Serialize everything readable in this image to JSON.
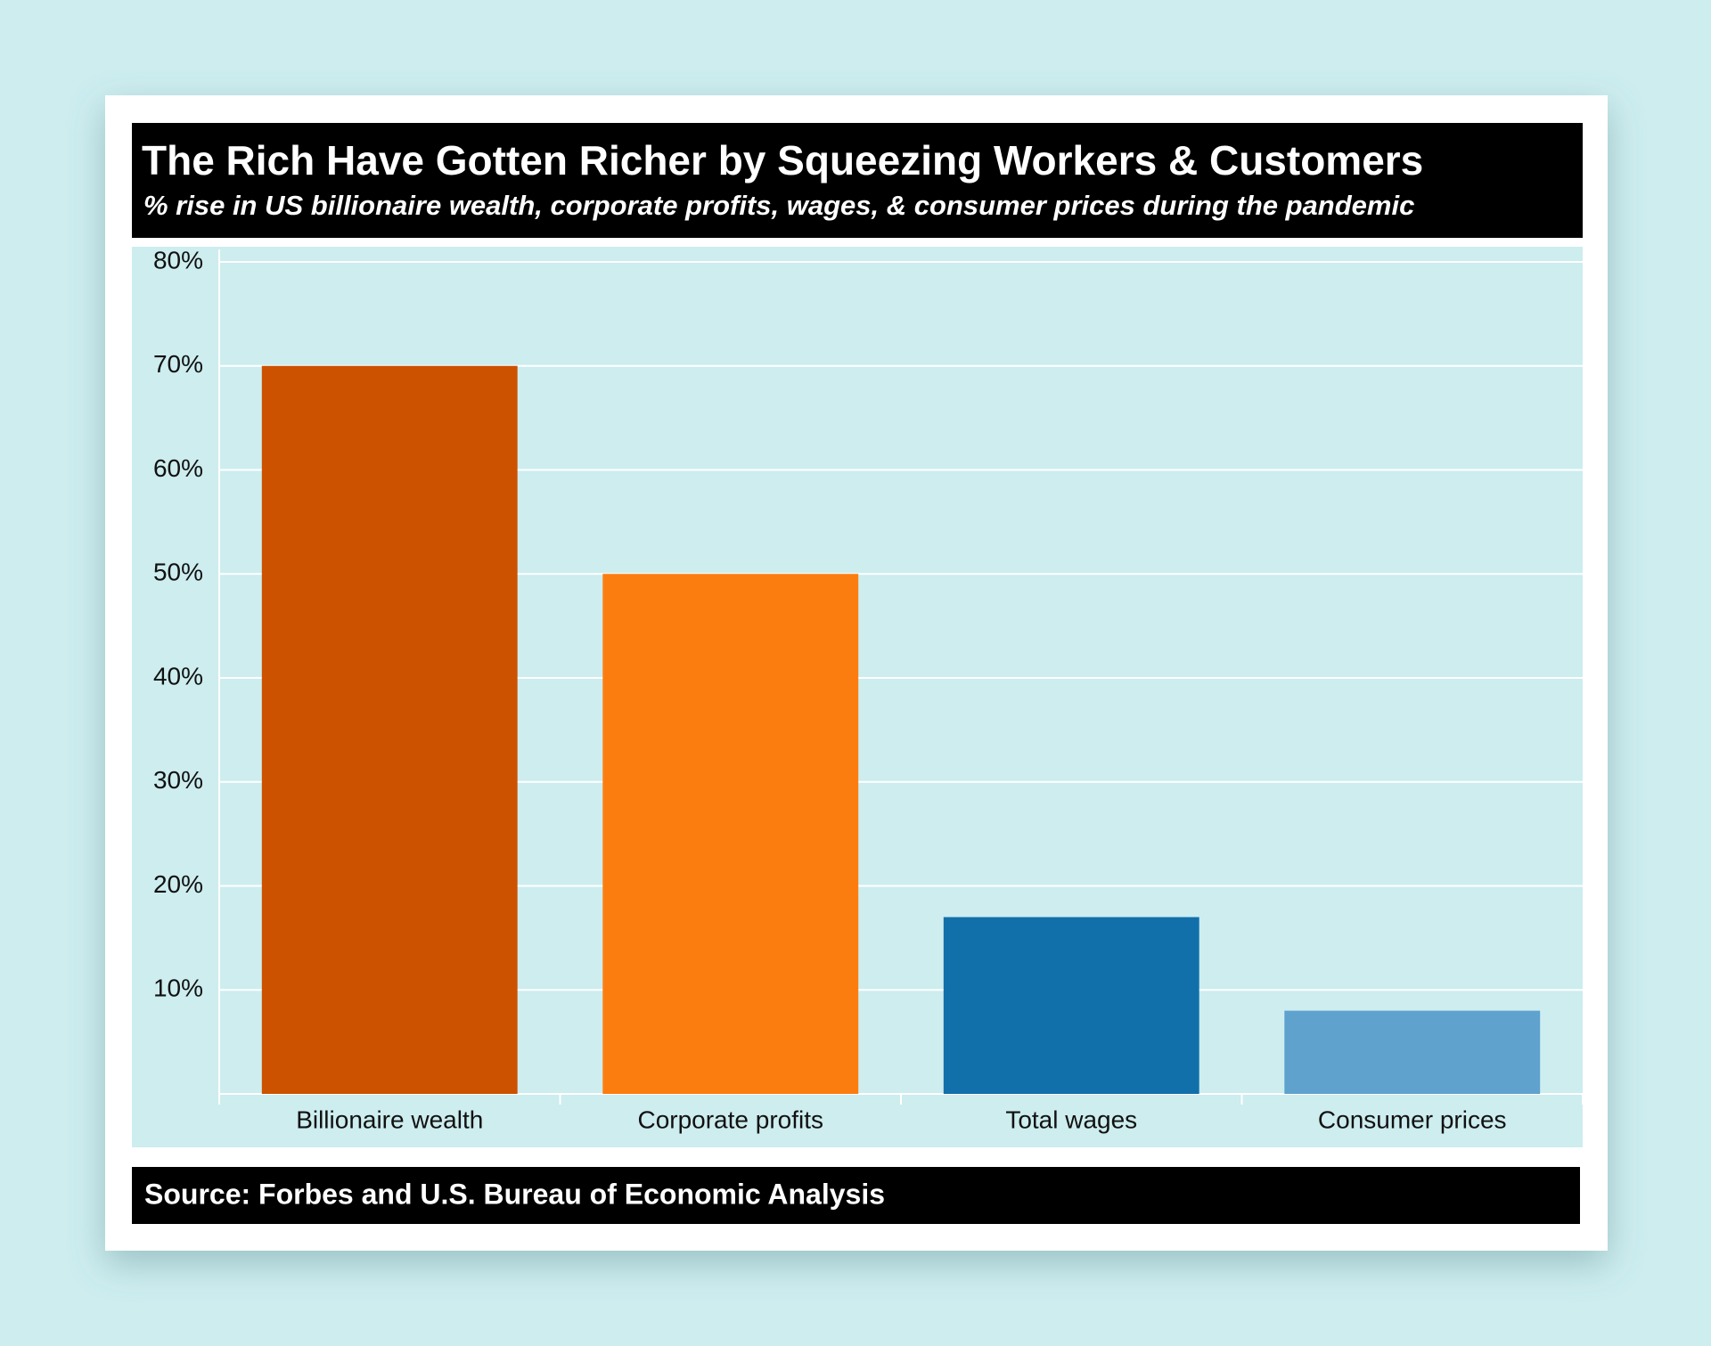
{
  "chart_data": {
    "type": "bar",
    "title": "The Rich Have Gotten Richer by Squeezing Workers & Customers",
    "subtitle": "% rise in US billionaire wealth, corporate profits, wages, & consumer prices during the pandemic",
    "source": "Source: Forbes and U.S. Bureau of Economic Analysis",
    "categories": [
      "Billionaire wealth",
      "Corporate profits",
      "Total wages",
      "Consumer prices"
    ],
    "values": [
      70,
      50,
      17,
      8
    ],
    "colors": [
      "#cc5200",
      "#fc7d0f",
      "#1170aa",
      "#5fa2ce"
    ],
    "ylim": [
      0,
      80
    ],
    "yticks": [
      {
        "value": 10,
        "label": "10%"
      },
      {
        "value": 20,
        "label": "20%"
      },
      {
        "value": 30,
        "label": "30%"
      },
      {
        "value": 40,
        "label": "40%"
      },
      {
        "value": 50,
        "label": "50%"
      },
      {
        "value": 60,
        "label": "60%"
      },
      {
        "value": 70,
        "label": "70%"
      },
      {
        "value": 80,
        "label": "80%"
      }
    ],
    "grid": true
  }
}
